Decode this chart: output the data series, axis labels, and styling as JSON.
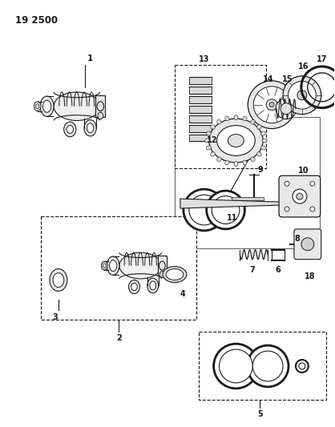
{
  "title": "19 2500",
  "bg_color": "#ffffff",
  "fg_color": "#1a1a1a",
  "fig_width": 4.18,
  "fig_height": 5.33,
  "dpi": 100
}
